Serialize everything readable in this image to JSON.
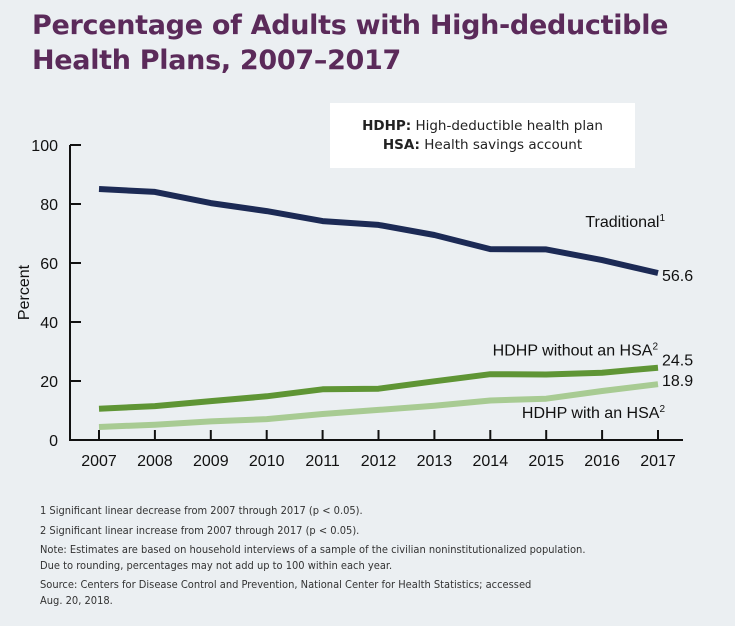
{
  "title": {
    "line1": "Percentage of Adults with High-deductible",
    "line2": "Health Plans, 2007–2017"
  },
  "legend_box": {
    "line1_bold": "HDHP:",
    "line1_text": " High-deductible health plan",
    "line2_bold": "HSA:",
    "line2_text": " Health savings account"
  },
  "footnotes": {
    "note1": "1 Significant linear decrease from 2007 through 2017 (p < 0.05).",
    "note2": "2 Significant linear increase from 2007 through 2017 (p < 0.05).",
    "note3_line1": "Note: Estimates are based on household interviews of a sample of the civilian noninstitutionalized population.",
    "note3_line2": "Due to rounding, percentages may not add up to 100 within each year.",
    "source_line1": "Source: Centers for Disease Control and Prevention, National Center for Health Statistics; accessed",
    "source_line2": "Aug. 20, 2018."
  },
  "chart_data": {
    "type": "line",
    "title": "Percentage of Adults with High-deductible Health Plans, 2007–2017",
    "xlabel": "",
    "ylabel": "Percent",
    "ylim": [
      0,
      100
    ],
    "yticks": [
      0,
      20,
      40,
      60,
      80,
      100
    ],
    "x": [
      "2007",
      "2008",
      "2009",
      "2010",
      "2011",
      "2012",
      "2013",
      "2014",
      "2015",
      "2016",
      "2017"
    ],
    "grid": false,
    "series": [
      {
        "name": "Traditional",
        "label": "Traditional¹",
        "color": "#1c2a55",
        "values": [
          85.1,
          84.1,
          80.3,
          77.6,
          74.2,
          72.9,
          69.5,
          64.7,
          64.6,
          61.0,
          56.6
        ],
        "end_label": "56.6"
      },
      {
        "name": "HDHP without an HSA",
        "label": "HDHP without an HSA²",
        "color": "#5f9535",
        "values": [
          10.6,
          11.5,
          13.2,
          14.8,
          17.2,
          17.4,
          19.9,
          22.3,
          22.2,
          22.8,
          24.5
        ],
        "end_label": "24.5"
      },
      {
        "name": "HDHP with an HSA",
        "label": "HDHP with an HSA²",
        "color": "#a8cb93",
        "values": [
          4.4,
          5.2,
          6.3,
          7.1,
          8.8,
          10.2,
          11.6,
          13.4,
          14.0,
          16.6,
          18.9
        ],
        "end_label": "18.9"
      }
    ]
  }
}
